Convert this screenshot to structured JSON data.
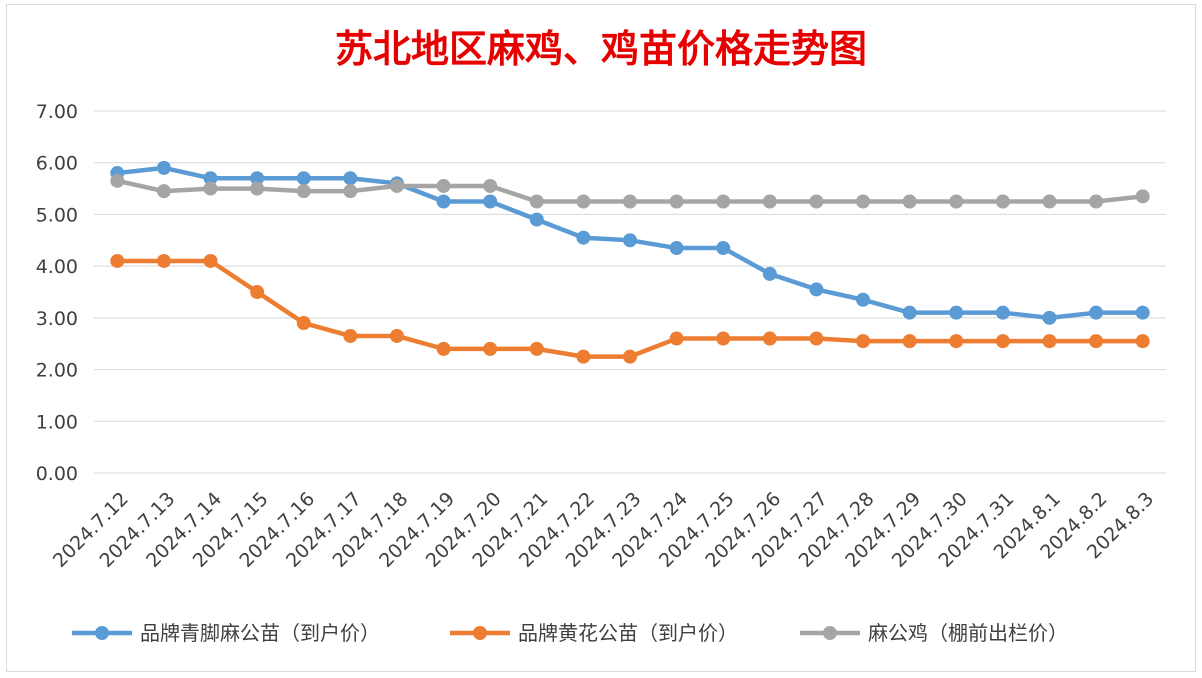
{
  "chart_data": {
    "type": "line",
    "title": "苏北地区麻鸡、鸡苗价格走势图",
    "categories": [
      "2024.7.12",
      "2024.7.13",
      "2024.7.14",
      "2024.7.15",
      "2024.7.16",
      "2024.7.17",
      "2024.7.18",
      "2024.7.19",
      "2024.7.20",
      "2024.7.21",
      "2024.7.22",
      "2024.7.23",
      "2024.7.24",
      "2024.7.25",
      "2024.7.26",
      "2024.7.27",
      "2024.7.28",
      "2024.7.29",
      "2024.7.30",
      "2024.7.31",
      "2024.8.1",
      "2024.8.2",
      "2024.8.3"
    ],
    "y_ticks": [
      "0.00",
      "1.00",
      "2.00",
      "3.00",
      "4.00",
      "5.00",
      "6.00",
      "7.00"
    ],
    "ylim": [
      0,
      7
    ],
    "grid": true,
    "legend_position": "bottom",
    "series": [
      {
        "name": "品牌青脚麻公苗（到户价）",
        "color": "#5b9bd5",
        "values": [
          5.8,
          5.9,
          5.7,
          5.7,
          5.7,
          5.7,
          5.6,
          5.25,
          5.25,
          4.9,
          4.55,
          4.5,
          4.35,
          4.35,
          3.85,
          3.55,
          3.35,
          3.1,
          3.1,
          3.1,
          3.0,
          3.1,
          3.1
        ]
      },
      {
        "name": "品牌黄花公苗（到户价）",
        "color": "#ed7d31",
        "values": [
          4.1,
          4.1,
          4.1,
          3.5,
          2.9,
          2.65,
          2.65,
          2.4,
          2.4,
          2.4,
          2.25,
          2.25,
          2.6,
          2.6,
          2.6,
          2.6,
          2.55,
          2.55,
          2.55,
          2.55,
          2.55,
          2.55,
          2.55
        ]
      },
      {
        "name": "麻公鸡（棚前出栏价）",
        "color": "#a5a5a5",
        "values": [
          5.65,
          5.45,
          5.5,
          5.5,
          5.45,
          5.45,
          5.55,
          5.55,
          5.55,
          5.25,
          5.25,
          5.25,
          5.25,
          5.25,
          5.25,
          5.25,
          5.25,
          5.25,
          5.25,
          5.25,
          5.25,
          5.25,
          5.35
        ]
      }
    ]
  }
}
